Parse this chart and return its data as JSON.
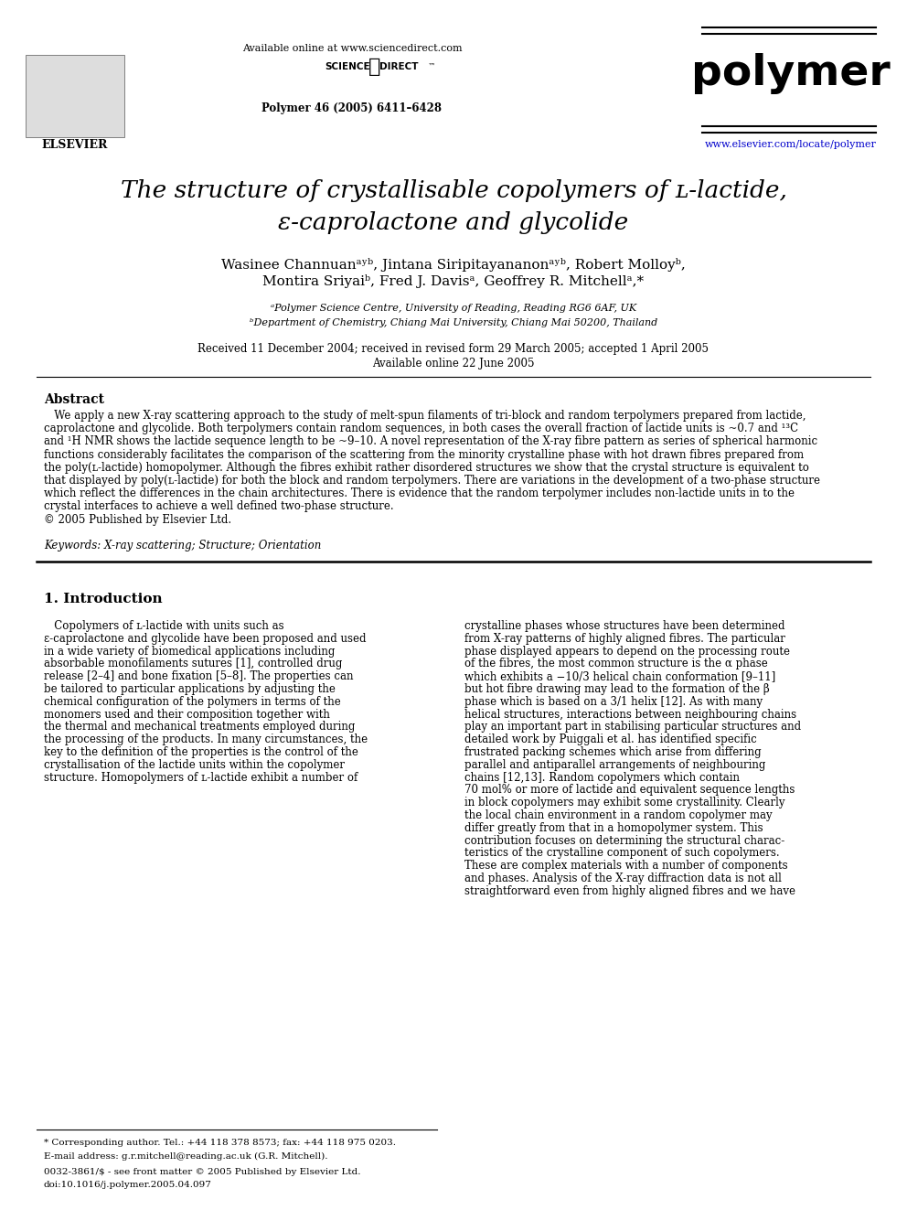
{
  "bg_color": "#ffffff",
  "header_available_online": "Available online at www.sciencedirect.com",
  "header_journal_name": "polymer",
  "header_journal_info": "Polymer 46 (2005) 6411–6428",
  "header_website": "www.elsevier.com/locate/polymer",
  "title_line1": "The structure of crystallisable copolymers of ʟ-lactide,",
  "title_line2": "ε-caprolactone and glycolide",
  "author_line1": "Wasinee Channuanᵃʸᵇ, Jintana Siripitayananonᵃʸᵇ, Robert Molloyᵇ,",
  "author_line2": "Montira Sriyaiᵇ, Fred J. Davisᵃ, Geoffrey R. Mitchellᵃ,*",
  "affil_a": "ᵃPolymer Science Centre, University of Reading, Reading RG6 6AF, UK",
  "affil_b": "ᵇDepartment of Chemistry, Chiang Mai University, Chiang Mai 50200, Thailand",
  "received": "Received 11 December 2004; received in revised form 29 March 2005; accepted 1 April 2005",
  "available_online2": "Available online 22 June 2005",
  "abstract_title": "Abstract",
  "abstract_lines": [
    "   We apply a new X-ray scattering approach to the study of melt-spun filaments of tri-block and random terpolymers prepared from lactide,",
    "caprolactone and glycolide. Both terpolymers contain random sequences, in both cases the overall fraction of lactide units is ~0.7 and ¹³C",
    "and ¹H NMR shows the lactide sequence length to be ~9–10. A novel representation of the X-ray fibre pattern as series of spherical harmonic",
    "functions considerably facilitates the comparison of the scattering from the minority crystalline phase with hot drawn fibres prepared from",
    "the poly(ʟ-lactide) homopolymer. Although the fibres exhibit rather disordered structures we show that the crystal structure is equivalent to",
    "that displayed by poly(ʟ-lactide) for both the block and random terpolymers. There are variations in the development of a two-phase structure",
    "which reflect the differences in the chain architectures. There is evidence that the random terpolymer includes non-lactide units in to the",
    "crystal interfaces to achieve a well defined two-phase structure.",
    "© 2005 Published by Elsevier Ltd."
  ],
  "keywords": "Keywords: X-ray scattering; Structure; Orientation",
  "section1_title": "1. Introduction",
  "col1_lines": [
    "   Copolymers of ʟ-lactide with units such as",
    "ε-caprolactone and glycolide have been proposed and used",
    "in a wide variety of biomedical applications including",
    "absorbable monofilaments sutures [1], controlled drug",
    "release [2–4] and bone fixation [5–8]. The properties can",
    "be tailored to particular applications by adjusting the",
    "chemical configuration of the polymers in terms of the",
    "monomers used and their composition together with",
    "the thermal and mechanical treatments employed during",
    "the processing of the products. In many circumstances, the",
    "key to the definition of the properties is the control of the",
    "crystallisation of the lactide units within the copolymer",
    "structure. Homopolymers of ʟ-lactide exhibit a number of"
  ],
  "col2_lines": [
    "crystalline phases whose structures have been determined",
    "from X-ray patterns of highly aligned fibres. The particular",
    "phase displayed appears to depend on the processing route",
    "of the fibres, the most common structure is the α phase",
    "which exhibits a −10/3 helical chain conformation [9–11]",
    "but hot fibre drawing may lead to the formation of the β",
    "phase which is based on a 3/1 helix [12]. As with many",
    "helical structures, interactions between neighbouring chains",
    "play an important part in stabilising particular structures and",
    "detailed work by Puiggali et al. has identified specific",
    "frustrated packing schemes which arise from differing",
    "parallel and antiparallel arrangements of neighbouring",
    "chains [12,13]. Random copolymers which contain",
    "70 mol% or more of lactide and equivalent sequence lengths",
    "in block copolymers may exhibit some crystallinity. Clearly",
    "the local chain environment in a random copolymer may",
    "differ greatly from that in a homopolymer system. This",
    "contribution focuses on determining the structural charac-",
    "teristics of the crystalline component of such copolymers.",
    "These are complex materials with a number of components",
    "and phases. Analysis of the X-ray diffraction data is not all",
    "straightforward even from highly aligned fibres and we have"
  ],
  "footer_corr": "* Corresponding author. Tel.: +44 118 378 8573; fax: +44 118 975 0203.",
  "footer_email": "E-mail address: g.r.mitchell@reading.ac.uk (G.R. Mitchell).",
  "footer_issn": "0032-3861/$ - see front matter © 2005 Published by Elsevier Ltd.",
  "footer_doi": "doi:10.1016/j.polymer.2005.04.097"
}
